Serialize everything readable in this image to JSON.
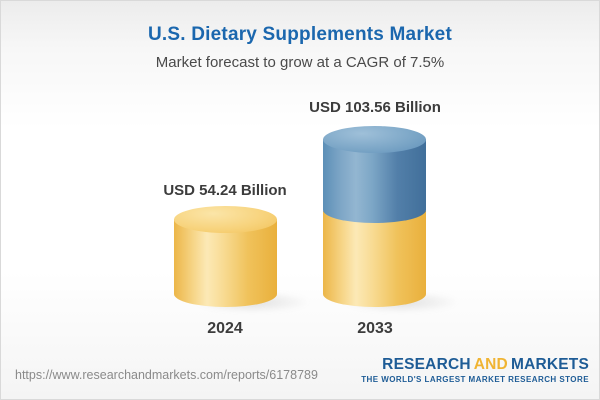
{
  "header": {
    "title": "U.S. Dietary Supplements Market",
    "subtitle": "Market forecast to grow at a CAGR of 7.5%"
  },
  "chart_data": {
    "type": "bar",
    "title": "U.S. Dietary Supplements Market",
    "subtitle": "Market forecast to grow at a CAGR of 7.5%",
    "categories": [
      "2024",
      "2033"
    ],
    "values": [
      54.24,
      103.56
    ],
    "unit": "USD Billion",
    "value_labels": [
      "USD 54.24 Billion",
      "USD 103.56 Billion"
    ],
    "cagr_pct": 7.5,
    "bar_style": "3d-cylinder",
    "legend": "none",
    "axes": "none",
    "series_colors": {
      "base_value_yellow": "#F3C863",
      "growth_segment_blue": "#5E92BB"
    }
  },
  "bars": [
    {
      "year": "2024",
      "value": 54.24,
      "value_label": "USD 54.24 Billion",
      "color": "#F3C863"
    },
    {
      "year": "2033",
      "value": 103.56,
      "value_label": "USD 103.56 Billion",
      "base_color": "#F3C863",
      "growth_color": "#5E92BB"
    }
  ],
  "footer": {
    "url": "https://www.researchandmarkets.com/reports/6178789",
    "logo": {
      "research": "RESEARCH",
      "and": "AND",
      "markets": "MARKETS",
      "tagline": "THE WORLD'S LARGEST MARKET RESEARCH STORE",
      "blue": "#1E5C96",
      "gold": "#F0B433"
    }
  },
  "colors": {
    "title_blue": "#1B67AE",
    "subtitle_gray": "#4A4A4A",
    "label_dark": "#3C3C3C",
    "url_gray": "#8A8A8A",
    "background_top": "#ECECEC",
    "background_bottom": "#F4F4F4",
    "border": "#D9D9D9"
  }
}
